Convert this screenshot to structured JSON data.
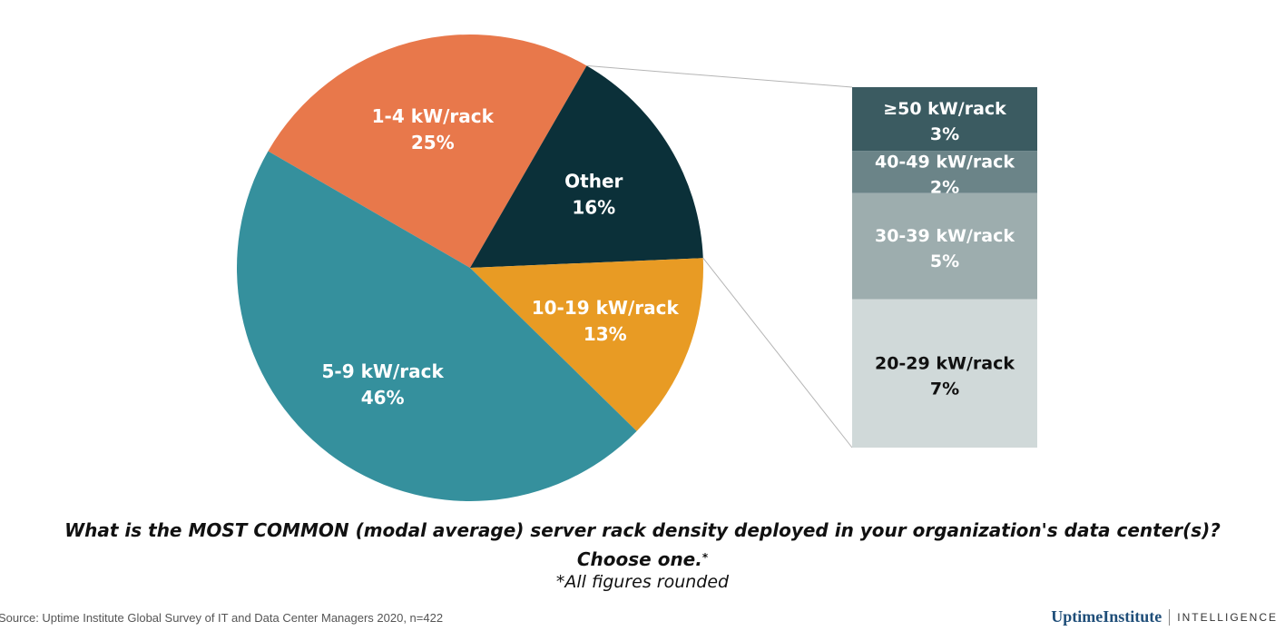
{
  "chart_data": {
    "type": "pie",
    "slices": [
      {
        "label": "1-4 kW/rack",
        "value": 25,
        "display": "25%",
        "color": "#e8784b"
      },
      {
        "label": "Other",
        "value": 16,
        "display": "16%",
        "color": "#0b3039"
      },
      {
        "label": "10-19 kW/rack",
        "value": 13,
        "display": "13%",
        "color": "#e89b24"
      },
      {
        "label": "5-9 kW/rack",
        "value": 46,
        "display": "46%",
        "color": "#35909d"
      }
    ],
    "breakdown": {
      "of": "Other",
      "segments": [
        {
          "label": "≥50 kW/rack",
          "value": 3,
          "display": "3%",
          "color": "#3b5b61",
          "text_color": "#ffffff"
        },
        {
          "label": "40-49 kW/rack",
          "value": 2,
          "display": "2%",
          "color": "#6b8488",
          "text_color": "#ffffff"
        },
        {
          "label": "30-39 kW/rack",
          "value": 5,
          "display": "5%",
          "color": "#9dadae",
          "text_color": "#ffffff"
        },
        {
          "label": "20-29 kW/rack",
          "value": 7,
          "display": "7%",
          "color": "#d0d9d9",
          "text_color": "#111111"
        }
      ]
    }
  },
  "question": {
    "line1": "What is the MOST COMMON (modal average) server rack density deployed in your organization's data center(s)?",
    "line2": "Choose one.",
    "asterisk": "*"
  },
  "footnote": "*All figures rounded",
  "source": "Source: Uptime Institute Global Survey of IT and Data Center Managers 2020, n=422",
  "brand": {
    "name": "UptimeInstitute",
    "sub": "INTELLIGENCE"
  }
}
